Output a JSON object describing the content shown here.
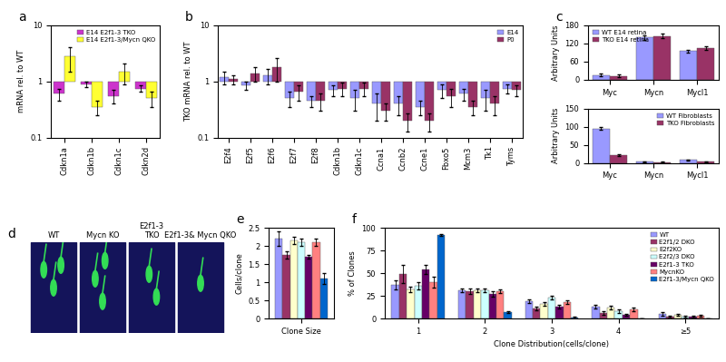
{
  "chart_data": [
    {
      "panel": "a",
      "type": "bar",
      "log": "y",
      "baseline": 1,
      "ylabel": "mRNA rel. to WT",
      "categories": [
        "Cdkn1a",
        "Cdkn1b",
        "Cdkn1c",
        "Cdkn2d"
      ],
      "ylim": [
        0.1,
        10
      ],
      "yticks": [
        0.1,
        1,
        10
      ],
      "legend": "upper right",
      "series": [
        {
          "name": "E14 E2f1-3 TKO",
          "color": "#cc33cc",
          "values": [
            0.6,
            0.9,
            0.55,
            0.75
          ],
          "errors": [
            0.15,
            0.1,
            0.15,
            0.1
          ]
        },
        {
          "name": "E14 E2f1-3/Mycn QKO",
          "color": "#ffff33",
          "values": [
            2.8,
            0.35,
            1.5,
            0.5
          ],
          "errors": [
            1.3,
            0.1,
            0.6,
            0.15
          ]
        }
      ]
    },
    {
      "panel": "b",
      "type": "bar",
      "log": "y",
      "baseline": 1,
      "ylabel": "TKO mRNA rel. to WT",
      "categories": [
        "E2f4",
        "E2f5",
        "E2f6",
        "E2f7",
        "E2f8",
        "Cdkn1b",
        "Cdkn1c",
        "Ccna1",
        "Ccnb2",
        "Ccne1",
        "Fbxo5",
        "Mcm3",
        "Tk1",
        "Tyms"
      ],
      "ylim": [
        0.1,
        10
      ],
      "yticks": [
        0.1,
        1,
        10
      ],
      "legend": "upper right",
      "series": [
        {
          "name": "E14",
          "color": "#9999ff",
          "values": [
            1.2,
            0.85,
            1.3,
            0.5,
            0.45,
            0.7,
            0.5,
            0.4,
            0.4,
            0.35,
            0.7,
            0.6,
            0.5,
            0.75
          ],
          "errors": [
            0.3,
            0.15,
            0.4,
            0.15,
            0.1,
            0.15,
            0.2,
            0.2,
            0.15,
            0.1,
            0.2,
            0.15,
            0.2,
            0.15
          ]
        },
        {
          "name": "P0",
          "color": "#993366",
          "values": [
            1.1,
            1.4,
            1.8,
            0.65,
            0.45,
            0.75,
            0.75,
            0.3,
            0.2,
            0.2,
            0.55,
            0.35,
            0.4,
            0.7
          ],
          "errors": [
            0.2,
            0.4,
            0.8,
            0.2,
            0.15,
            0.2,
            0.2,
            0.1,
            0.07,
            0.07,
            0.2,
            0.1,
            0.15,
            0.15
          ]
        }
      ]
    },
    {
      "panel": "c",
      "type": "bar",
      "ylabel": "Arbitrary Units",
      "categories": [
        "Myc",
        "Mycn",
        "Mycl1"
      ],
      "ylim": [
        0,
        180
      ],
      "yticks": [
        0,
        60,
        120,
        180
      ],
      "legend": "upper left",
      "series": [
        {
          "name": "WT E14 retina",
          "color": "#9999ff",
          "values": [
            15,
            140,
            95
          ],
          "errors": [
            5,
            8,
            5
          ]
        },
        {
          "name": "TKO E14 retina",
          "color": "#993366",
          "values": [
            12,
            145,
            105
          ],
          "errors": [
            5,
            8,
            6
          ]
        }
      ]
    },
    {
      "type": "bar",
      "ylabel": "Arbitrary Units",
      "categories": [
        "Myc",
        "Mycn",
        "Mycl1"
      ],
      "ylim": [
        0,
        150
      ],
      "yticks": [
        0,
        50,
        100,
        150
      ],
      "legend": "upper right",
      "series": [
        {
          "name": "WT Fibroblasts",
          "color": "#9999ff",
          "values": [
            95,
            3,
            8
          ],
          "errors": [
            3,
            1,
            1
          ]
        },
        {
          "name": "TKO Fibroblasts",
          "color": "#993366",
          "values": [
            22,
            2,
            3
          ],
          "errors": [
            2,
            1,
            1
          ]
        }
      ]
    },
    {
      "panel": "d",
      "type": "image",
      "categories": [
        "WT",
        "Mycn KO",
        "E2f1-3\nTKO",
        "E2f1-3& Mycn QKO"
      ]
    },
    {
      "panel": "e",
      "type": "bar",
      "ylabel": "Cells/clone",
      "categories": [
        "Clone Size"
      ],
      "ylim": [
        0,
        2.5
      ],
      "yticks": [
        0,
        0.5,
        1,
        1.5,
        2,
        2.5
      ],
      "series": [
        {
          "name": "WT",
          "color": "#9999ff",
          "values": [
            2.2
          ],
          "errors": [
            0.2
          ]
        },
        {
          "name": "E2f1/2 DKO",
          "color": "#993366",
          "values": [
            1.75
          ],
          "errors": [
            0.1
          ]
        },
        {
          "name": "E2f2KO",
          "color": "#ffffcc",
          "values": [
            2.15
          ],
          "errors": [
            0.1
          ]
        },
        {
          "name": "E2f2/3 DKO",
          "color": "#ccffff",
          "values": [
            2.1
          ],
          "errors": [
            0.1
          ]
        },
        {
          "name": "E2f1-3 TKO",
          "color": "#660066",
          "values": [
            1.7
          ],
          "errors": [
            0.05
          ]
        },
        {
          "name": "MycnKO",
          "color": "#ff8080",
          "values": [
            2.1
          ],
          "errors": [
            0.1
          ]
        },
        {
          "name": "E2f1-3/Mycn QKO",
          "color": "#0066cc",
          "values": [
            1.1
          ],
          "errors": [
            0.15
          ]
        }
      ]
    },
    {
      "panel": "f",
      "type": "bar",
      "ylabel": "% of Clones",
      "xlabel": "Clone Distribution(cells/clone)",
      "categories": [
        "1",
        "2",
        "3",
        "4",
        "≥5"
      ],
      "ylim": [
        0,
        100
      ],
      "yticks": [
        0,
        25,
        50,
        75,
        100
      ],
      "legend": "upper right",
      "series": [
        {
          "name": "WT",
          "color": "#9999ff",
          "values": [
            37,
            31,
            19,
            13,
            5
          ],
          "errors": [
            5,
            2,
            2,
            2,
            2
          ]
        },
        {
          "name": "E2f1/2 DKO",
          "color": "#993366",
          "values": [
            49,
            30,
            11,
            6,
            2
          ],
          "errors": [
            10,
            3,
            2,
            2,
            1
          ]
        },
        {
          "name": "E2f2KO",
          "color": "#ffffcc",
          "values": [
            32,
            31,
            16,
            12,
            4
          ],
          "errors": [
            3,
            2,
            2,
            2,
            1
          ]
        },
        {
          "name": "E2f2/3 DKO",
          "color": "#ccffff",
          "values": [
            36,
            31,
            23,
            8,
            2
          ],
          "errors": [
            4,
            2,
            2,
            2,
            1
          ]
        },
        {
          "name": "E2f1-3 TKO",
          "color": "#660066",
          "values": [
            54,
            27,
            13,
            4,
            2
          ],
          "errors": [
            5,
            3,
            2,
            1,
            1
          ]
        },
        {
          "name": "MycnKO",
          "color": "#ff8080",
          "values": [
            40,
            30,
            18,
            10,
            3
          ],
          "errors": [
            6,
            2,
            2,
            2,
            1
          ]
        },
        {
          "name": "E2f1-3/Mycn QKO",
          "color": "#0066cc",
          "values": [
            92,
            7,
            1,
            0,
            0
          ],
          "errors": [
            1,
            1,
            1,
            0,
            0
          ]
        }
      ]
    }
  ]
}
